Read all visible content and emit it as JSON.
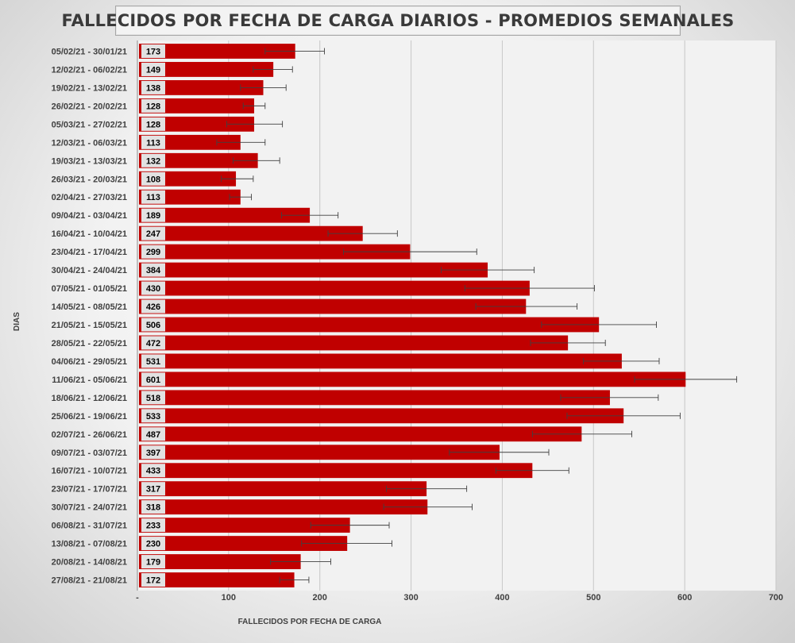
{
  "chart_data": {
    "type": "bar",
    "orientation": "horizontal",
    "title": "FALLECIDOS POR FECHA DE CARGA DIARIOS - PROMEDIOS SEMANALES",
    "xlabel": "FALLECIDOS POR FECHA DE CARGA",
    "ylabel": "DIAS",
    "xlim": [
      0,
      700
    ],
    "xticks": [
      "-",
      "100",
      "200",
      "300",
      "400",
      "500",
      "600",
      "700"
    ],
    "grid": "vertical",
    "bar_color": "#c00000",
    "categories": [
      "05/02/21 - 30/01/21",
      "12/02/21 - 06/02/21",
      "19/02/21 - 13/02/21",
      "26/02/21 - 20/02/21",
      "05/03/21 - 27/02/21",
      "12/03/21 - 06/03/21",
      "19/03/21 - 13/03/21",
      "26/03/21 - 20/03/21",
      "02/04/21 - 27/03/21",
      "09/04/21 - 03/04/21",
      "16/04/21 - 10/04/21",
      "23/04/21 - 17/04/21",
      "30/04/21 - 24/04/21",
      "07/05/21 - 01/05/21",
      "14/05/21 - 08/05/21",
      "21/05/21 - 15/05/21",
      "28/05/21 - 22/05/21",
      "04/06/21 - 29/05/21",
      "11/06/21 - 05/06/21",
      "18/06/21 - 12/06/21",
      "25/06/21 - 19/06/21",
      "02/07/21 - 26/06/21",
      "09/07/21 - 03/07/21",
      "16/07/21 - 10/07/21",
      "23/07/21 - 17/07/21",
      "30/07/21 - 24/07/21",
      "06/08/21 - 31/07/21",
      "13/08/21 - 07/08/21",
      "20/08/21 - 14/08/21",
      "27/08/21 - 21/08/21"
    ],
    "values": [
      173,
      149,
      138,
      128,
      128,
      113,
      132,
      108,
      113,
      189,
      247,
      299,
      384,
      430,
      426,
      506,
      472,
      531,
      601,
      518,
      533,
      487,
      397,
      433,
      317,
      318,
      233,
      230,
      179,
      172
    ],
    "error_low": [
      140,
      127,
      113,
      116,
      98,
      87,
      105,
      92,
      101,
      158,
      209,
      226,
      333,
      359,
      371,
      443,
      431,
      489,
      545,
      464,
      471,
      433,
      342,
      393,
      273,
      270,
      190,
      180,
      146,
      156
    ],
    "error_high": [
      205,
      170,
      163,
      140,
      159,
      140,
      156,
      127,
      125,
      220,
      285,
      372,
      435,
      501,
      482,
      569,
      513,
      572,
      657,
      571,
      595,
      542,
      451,
      473,
      361,
      367,
      276,
      279,
      212,
      188
    ]
  }
}
